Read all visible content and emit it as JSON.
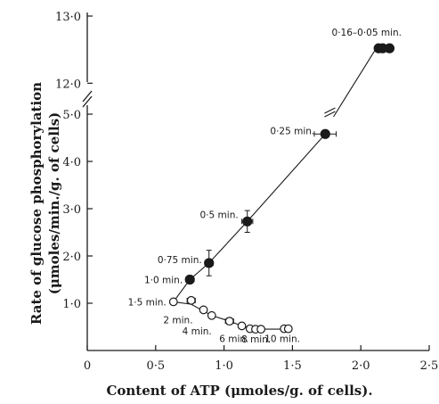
{
  "chart_data": {
    "type": "scatter",
    "title": "",
    "xlabel": "Content of ATP (μmoles/g. of cells).",
    "ylabel_lines": [
      "Rate of glucose phosphorylation",
      "(μmoles/min./g. of cells)"
    ],
    "xlim": [
      0,
      2.5
    ],
    "y_lower_range": [
      0,
      5.0
    ],
    "y_upper_range": [
      11.5,
      13.0
    ],
    "axis_break": true,
    "grid": false,
    "x_ticks": [
      {
        "value": 0,
        "label": "0"
      },
      {
        "value": 0.5,
        "label": "0·5"
      },
      {
        "value": 1.0,
        "label": "1·0"
      },
      {
        "value": 1.5,
        "label": "1·5"
      },
      {
        "value": 2.0,
        "label": "2·0"
      },
      {
        "value": 2.5,
        "label": "2·5"
      }
    ],
    "y_ticks": [
      {
        "value": 1.0,
        "label": "1·0"
      },
      {
        "value": 2.0,
        "label": "2·0"
      },
      {
        "value": 3.0,
        "label": "3·0"
      },
      {
        "value": 4.0,
        "label": "4·0"
      },
      {
        "value": 5.0,
        "label": "5·0"
      },
      {
        "value": 12.0,
        "label": "12·0"
      },
      {
        "value": 13.0,
        "label": "13·0"
      }
    ],
    "series": [
      {
        "marker": "filled",
        "points": [
          {
            "x": 0.75,
            "y": 1.5,
            "xerr": 0.03,
            "yerr": 0.08,
            "label": "1·0 min."
          },
          {
            "x": 0.89,
            "y": 1.85,
            "xerr": 0.03,
            "yerr": 0.27,
            "label": "0·75 min."
          },
          {
            "x": 1.17,
            "y": 2.73,
            "xerr": 0.04,
            "yerr": 0.23,
            "label": "0·5 min."
          },
          {
            "x": 1.74,
            "y": 4.58,
            "xerr": 0.08,
            "yerr": 0.06,
            "label": "0·25 min."
          },
          {
            "x": 2.13,
            "y": 12.52,
            "label": ""
          },
          {
            "x": 2.16,
            "y": 12.52,
            "label": "0·16–0·05 min."
          },
          {
            "x": 2.21,
            "y": 12.52,
            "label": ""
          }
        ]
      },
      {
        "marker": "open",
        "points": [
          {
            "x": 0.63,
            "y": 1.03,
            "label": "1·5 min."
          },
          {
            "x": 0.76,
            "y": 1.06,
            "xerr": 0.03,
            "yerr": 0.05,
            "label": ""
          },
          {
            "x": 0.85,
            "y": 0.86,
            "xerr": 0.02,
            "yerr": 0.05,
            "label": "2 min."
          },
          {
            "x": 0.91,
            "y": 0.74,
            "label": ""
          },
          {
            "x": 1.04,
            "y": 0.62,
            "xerr": 0.03,
            "yerr": 0.07,
            "label": "4 min."
          },
          {
            "x": 1.13,
            "y": 0.52,
            "label": ""
          },
          {
            "x": 1.19,
            "y": 0.46,
            "label": "6 min."
          },
          {
            "x": 1.23,
            "y": 0.45,
            "label": ""
          },
          {
            "x": 1.27,
            "y": 0.45,
            "label": "8 min."
          },
          {
            "x": 1.44,
            "y": 0.46,
            "label": "10 min."
          },
          {
            "x": 1.47,
            "y": 0.46,
            "label": ""
          }
        ]
      }
    ],
    "lines": [
      {
        "points": [
          [
            0.63,
            1.03
          ],
          [
            0.75,
            1.5
          ],
          [
            0.89,
            1.85
          ],
          [
            1.17,
            2.73
          ],
          [
            1.74,
            4.58
          ]
        ]
      },
      {
        "points": [
          [
            1.8,
            11.5
          ],
          [
            2.1,
            12.48
          ]
        ]
      },
      {
        "points": [
          [
            0.63,
            1.03
          ],
          [
            0.76,
            0.98
          ],
          [
            0.91,
            0.74
          ],
          [
            1.04,
            0.62
          ],
          [
            1.13,
            0.52
          ],
          [
            1.23,
            0.45
          ],
          [
            1.44,
            0.45
          ],
          [
            1.47,
            0.46
          ]
        ]
      }
    ]
  }
}
